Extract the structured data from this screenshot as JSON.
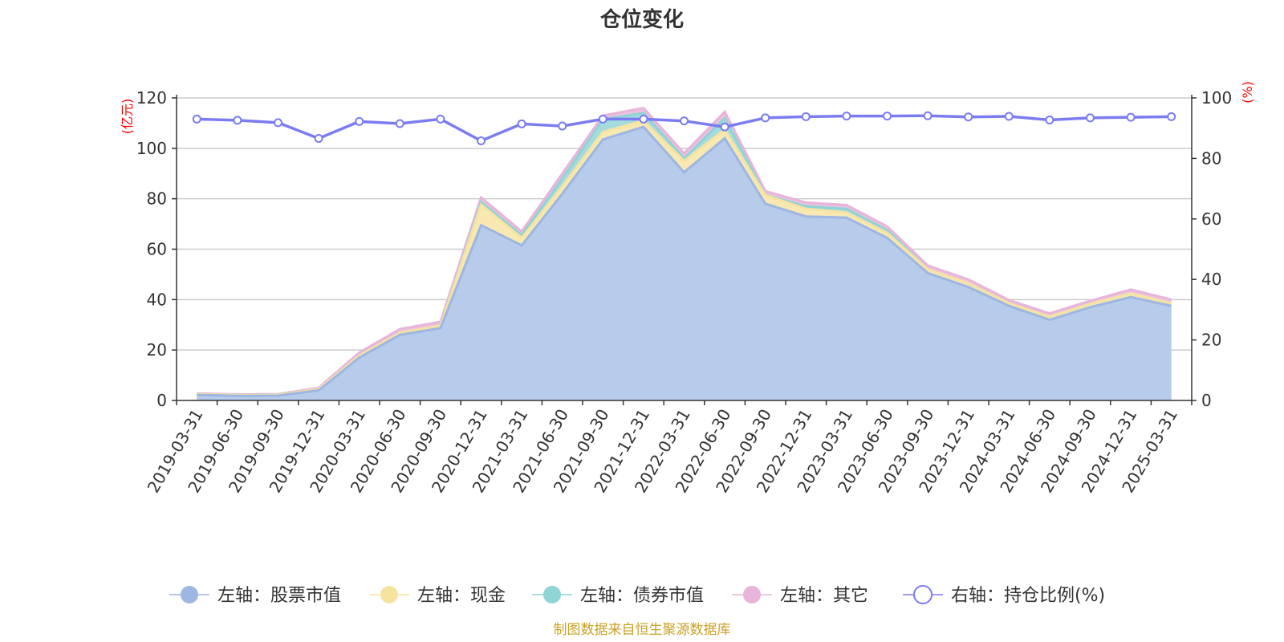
{
  "chart_data": {
    "type": "area",
    "title": "仓位变化",
    "source": "制图数据来自恒生聚源数据库",
    "left_axis": {
      "unit": "(亿元)",
      "range": [
        0,
        120
      ],
      "ticks": [
        "0",
        "20",
        "40",
        "60",
        "80",
        "100",
        "120"
      ],
      "tick_values": [
        0,
        20,
        40,
        60,
        80,
        100,
        120
      ]
    },
    "right_axis": {
      "unit": "(%)",
      "range": [
        0,
        100
      ],
      "ticks": [
        "0",
        "20",
        "40",
        "60",
        "80",
        "100"
      ],
      "tick_values": [
        0,
        20,
        40,
        60,
        80,
        100
      ]
    },
    "grid": true,
    "legend_position": "bottom",
    "categories": [
      "2019-03-31",
      "2019-06-30",
      "2019-09-30",
      "2019-12-31",
      "2020-03-31",
      "2020-06-30",
      "2020-09-30",
      "2020-12-31",
      "2021-03-31",
      "2021-06-30",
      "2021-09-30",
      "2021-12-31",
      "2022-03-31",
      "2022-06-30",
      "2022-09-30",
      "2022-12-31",
      "2023-03-31",
      "2023-06-30",
      "2023-09-30",
      "2023-12-31",
      "2024-03-31",
      "2024-06-30",
      "2024-09-30",
      "2024-12-31",
      "2025-03-31"
    ],
    "series": [
      {
        "name": "左轴：股票市值",
        "axis": "left",
        "kind": "area",
        "color": "#9db6e2",
        "fill": "#b7cbea",
        "values": [
          2.2,
          1.8,
          1.9,
          4.0,
          17.0,
          26.0,
          28.7,
          69.5,
          61.5,
          82.0,
          103.5,
          108.5,
          90.5,
          104.0,
          78.0,
          73.0,
          72.5,
          64.5,
          50.5,
          45.0,
          37.5,
          32.0,
          37.0,
          41.0,
          37.5
        ]
      },
      {
        "name": "左轴：现金",
        "axis": "left",
        "kind": "area",
        "color": "#f7e3a1",
        "fill": "#f8e8b1",
        "values": [
          0.3,
          0.3,
          0.3,
          0.5,
          0.8,
          0.8,
          1.0,
          8.2,
          3.0,
          3.0,
          3.0,
          2.5,
          4.5,
          3.5,
          3.5,
          3.0,
          2.0,
          2.0,
          1.5,
          1.5,
          1.0,
          1.2,
          1.3,
          1.5,
          1.0
        ]
      },
      {
        "name": "左轴：债券市值",
        "axis": "left",
        "kind": "area",
        "color": "#8fd4d6",
        "fill": "#a5dbdc",
        "values": [
          0.0,
          0.0,
          0.0,
          0.0,
          0.0,
          0.0,
          0.0,
          1.0,
          1.0,
          3.0,
          5.0,
          3.0,
          1.0,
          4.5,
          0.0,
          1.0,
          1.5,
          1.0,
          0.0,
          0.0,
          0.0,
          0.0,
          0.0,
          0.0,
          0.0
        ]
      },
      {
        "name": "左轴：其它",
        "axis": "left",
        "kind": "area",
        "color": "#e8b4da",
        "fill": "#edc2e1",
        "values": [
          0.3,
          0.3,
          0.3,
          0.5,
          1.2,
          1.5,
          1.5,
          1.8,
          1.5,
          2.0,
          1.5,
          2.0,
          2.0,
          2.5,
          1.5,
          1.5,
          1.5,
          1.5,
          1.5,
          1.5,
          1.3,
          1.3,
          1.2,
          1.5,
          1.5
        ]
      },
      {
        "name": "右轴：持仓比例(%)",
        "axis": "right",
        "kind": "line",
        "color": "#7b7cf2",
        "values": [
          93.0,
          92.6,
          91.8,
          86.6,
          92.2,
          91.5,
          93.0,
          85.8,
          91.4,
          90.7,
          93.0,
          93.0,
          92.4,
          90.4,
          93.4,
          93.8,
          94.0,
          94.0,
          94.1,
          93.7,
          93.9,
          92.7,
          93.4,
          93.6,
          93.8
        ]
      }
    ]
  }
}
